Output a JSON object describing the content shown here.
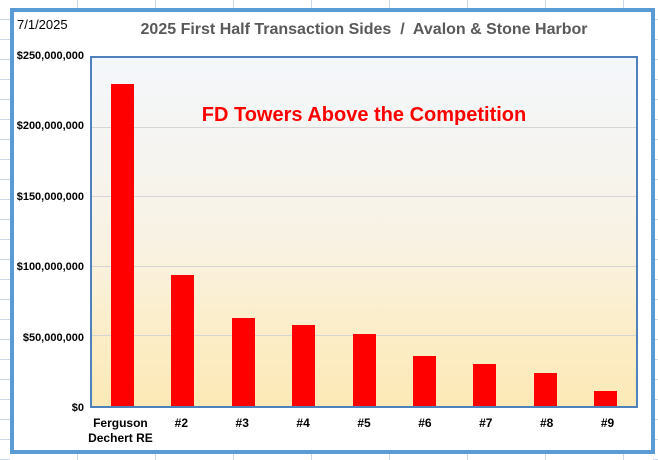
{
  "sheet": {
    "date_label": "7/1/2025"
  },
  "chart": {
    "title": "2025 First Half Transaction Sides  /  Avalon & Stone Harbor",
    "annotation": "FD Towers Above the Competition"
  },
  "chart_data": {
    "type": "bar",
    "title": "2025 First Half Transaction Sides / Avalon & Stone Harbor",
    "annotation": "FD Towers Above the Competition",
    "categories": [
      "Ferguson Dechert RE",
      "#2",
      "#3",
      "#4",
      "#5",
      "#6",
      "#7",
      "#8",
      "#9"
    ],
    "values": [
      231000000,
      94000000,
      63500000,
      58000000,
      51500000,
      36000000,
      30500000,
      24000000,
      10500000
    ],
    "xlabel": "",
    "ylabel": "",
    "ylim": [
      0,
      250000000
    ],
    "yticks": [
      {
        "value": 0,
        "label": "$0"
      },
      {
        "value": 50000000,
        "label": "$50,000,000"
      },
      {
        "value": 100000000,
        "label": "$100,000,000"
      },
      {
        "value": 150000000,
        "label": "$150,000,000"
      },
      {
        "value": 200000000,
        "label": "$200,000,000"
      },
      {
        "value": 250000000,
        "label": "$250,000,000"
      }
    ],
    "grid": true,
    "legend": false,
    "bar_color": "#FF0000",
    "annotation_color": "#FF0000"
  },
  "colors": {
    "frame_border": "#5B9BD5",
    "plot_border": "#4F81BD",
    "title_text": "#595959",
    "gridline": "#D5D5D5",
    "bar": "#FF0000",
    "annotation": "#FF0000"
  }
}
